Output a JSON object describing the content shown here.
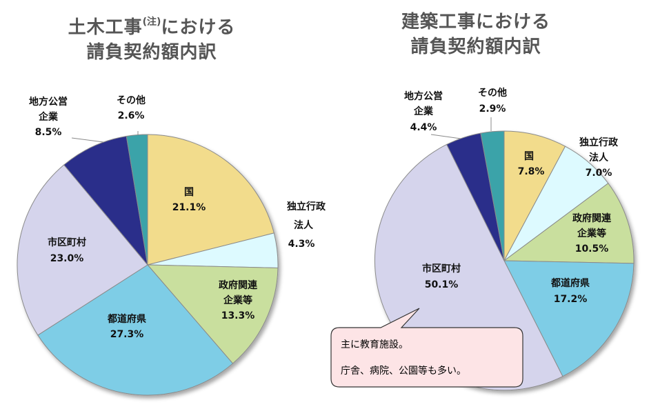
{
  "chart_data": [
    {
      "type": "pie",
      "title_main": "土木工事",
      "title_note": "(注)",
      "title_rest": "における",
      "title_line2": "請負契約額内訳",
      "slices": [
        {
          "name": "国",
          "value": 21.1,
          "label": "21.1%",
          "color": "#F2DC8C"
        },
        {
          "name": "独立行政法人",
          "value": 4.3,
          "label": "4.3%",
          "color": "#DDFAFF"
        },
        {
          "name": "政府関連企業等",
          "value": 13.3,
          "label": "13.3%",
          "color": "#C9DF9E"
        },
        {
          "name": "都道府県",
          "value": 27.3,
          "label": "27.3%",
          "color": "#7ECDE6"
        },
        {
          "name": "市区町村",
          "value": 23.0,
          "label": "23.0%",
          "color": "#D5D4EC"
        },
        {
          "name": "地方公営企業",
          "value": 8.5,
          "label": "8.5%",
          "color": "#2B2E8A"
        },
        {
          "name": "その他",
          "value": 2.6,
          "label": "2.6%",
          "color": "#3AA3A9"
        }
      ]
    },
    {
      "type": "pie",
      "title_line1": "建築工事における",
      "title_line2": "請負契約額内訳",
      "slices": [
        {
          "name": "国",
          "value": 7.8,
          "label": "7.8%",
          "color": "#F2DC8C"
        },
        {
          "name": "独立行政法人",
          "value": 7.0,
          "label": "7.0%",
          "color": "#DDFAFF"
        },
        {
          "name": "政府関連企業等",
          "value": 10.5,
          "label": "10.5%",
          "color": "#C9DF9E"
        },
        {
          "name": "都道府県",
          "value": 17.2,
          "label": "17.2%",
          "color": "#7ECDE6"
        },
        {
          "name": "市区町村",
          "value": 50.1,
          "label": "50.1%",
          "color": "#D5D4EC"
        },
        {
          "name": "地方公営企業",
          "value": 4.4,
          "label": "4.4%",
          "color": "#2B2E8A"
        },
        {
          "name": "その他",
          "value": 2.9,
          "label": "2.9%",
          "color": "#3AA3A9"
        }
      ]
    }
  ],
  "labels_left": {
    "kuni": "国",
    "kuni_v": "21.1%",
    "dokuritsu_1": "独立行政",
    "dokuritsu_2": "法人",
    "dokuritsu_v": "4.3%",
    "seifu_1": "政府関連",
    "seifu_2": "企業等",
    "seifu_v": "13.3%",
    "todo": "都道府県",
    "todo_v": "27.3%",
    "shiku": "市区町村",
    "shiku_v": "23.0%",
    "chiho_1": "地方公営",
    "chiho_2": "企業",
    "chiho_v": "8.5%",
    "sonota": "その他",
    "sonota_v": "2.6%"
  },
  "labels_right": {
    "kuni": "国",
    "kuni_v": "7.8%",
    "dokuritsu_1": "独立行政",
    "dokuritsu_2": "法人",
    "dokuritsu_v": "7.0%",
    "seifu_1": "政府関連",
    "seifu_2": "企業等",
    "seifu_v": "10.5%",
    "todo": "都道府県",
    "todo_v": "17.2%",
    "shiku": "市区町村",
    "shiku_v": "50.1%",
    "chiho_1": "地方公営",
    "chiho_2": "企業",
    "chiho_v": "4.4%",
    "sonota": "その他",
    "sonota_v": "2.9%"
  },
  "callout": {
    "line1": "主に教育施設。",
    "line2": "庁舎、病院、公園等も多い。"
  }
}
